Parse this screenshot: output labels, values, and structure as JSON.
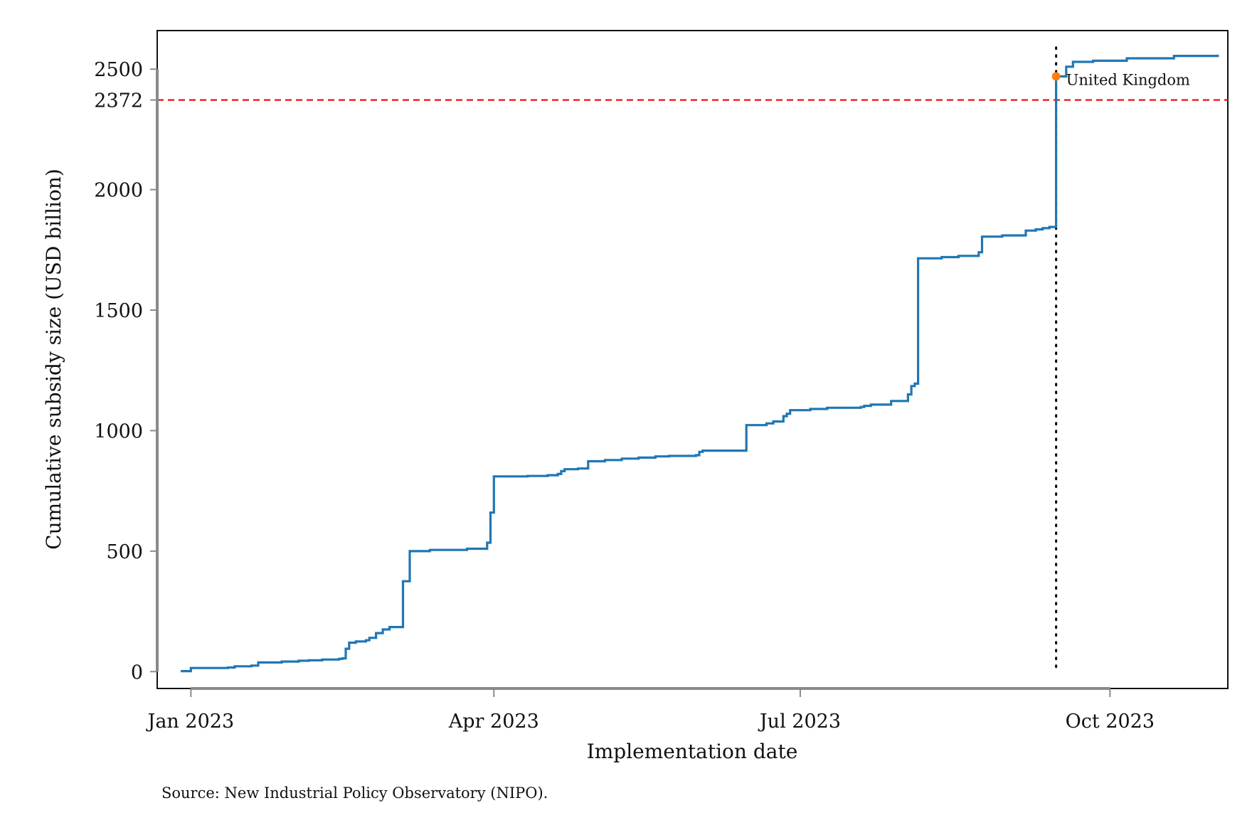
{
  "chart_data": {
    "type": "line",
    "title": "",
    "xlabel": "Implementation date",
    "ylabel": "Cumulative subsidy size (USD billion)",
    "x_ticks": [
      {
        "date": "2023-01-01",
        "label": "Jan 2023"
      },
      {
        "date": "2023-04-01",
        "label": "Apr 2023"
      },
      {
        "date": "2023-07-01",
        "label": "Jul 2023"
      },
      {
        "date": "2023-10-01",
        "label": "Oct 2023"
      }
    ],
    "y_ticks": [
      0,
      500,
      1000,
      1500,
      2000,
      2372,
      2500
    ],
    "xlim": [
      "2022-12-22",
      "2023-11-05"
    ],
    "ylim": [
      -70,
      2660
    ],
    "grid": false,
    "colors": {
      "series": "#1f77b4",
      "reference_line": "#e8262b",
      "marker": "#ff7f0e",
      "vline": "#000000"
    },
    "reference_hline": {
      "y": 2372,
      "label": "2372",
      "style": "dashed"
    },
    "reference_vline": {
      "x": "2023-09-15",
      "style": "dotted"
    },
    "annotation": {
      "x": "2023-09-15",
      "y": 2470,
      "text": "United Kingdom"
    },
    "source_note": "Source: New Industrial Policy Observatory (NIPO).",
    "series": [
      {
        "name": "",
        "step": true,
        "points": [
          [
            "2022-12-29",
            2
          ],
          [
            "2023-01-01",
            15
          ],
          [
            "2023-01-12",
            17
          ],
          [
            "2023-01-14",
            22
          ],
          [
            "2023-01-19",
            25
          ],
          [
            "2023-01-21",
            38
          ],
          [
            "2023-01-28",
            42
          ],
          [
            "2023-02-02",
            45
          ],
          [
            "2023-02-05",
            47
          ],
          [
            "2023-02-09",
            50
          ],
          [
            "2023-02-14",
            53
          ],
          [
            "2023-02-15",
            55
          ],
          [
            "2023-02-16",
            95
          ],
          [
            "2023-02-17",
            120
          ],
          [
            "2023-02-19",
            125
          ],
          [
            "2023-02-22",
            130
          ],
          [
            "2023-02-23",
            140
          ],
          [
            "2023-02-25",
            160
          ],
          [
            "2023-02-27",
            175
          ],
          [
            "2023-03-01",
            185
          ],
          [
            "2023-03-05",
            375
          ],
          [
            "2023-03-07",
            500
          ],
          [
            "2023-03-13",
            505
          ],
          [
            "2023-03-24",
            510
          ],
          [
            "2023-03-30",
            535
          ],
          [
            "2023-03-31",
            660
          ],
          [
            "2023-04-01",
            810
          ],
          [
            "2023-04-11",
            812
          ],
          [
            "2023-04-17",
            815
          ],
          [
            "2023-04-20",
            820
          ],
          [
            "2023-04-21",
            832
          ],
          [
            "2023-04-22",
            840
          ],
          [
            "2023-04-26",
            843
          ],
          [
            "2023-04-29",
            873
          ],
          [
            "2023-05-04",
            878
          ],
          [
            "2023-05-09",
            884
          ],
          [
            "2023-05-14",
            888
          ],
          [
            "2023-05-19",
            893
          ],
          [
            "2023-05-23",
            895
          ],
          [
            "2023-05-31",
            898
          ],
          [
            "2023-06-01",
            912
          ],
          [
            "2023-06-02",
            917
          ],
          [
            "2023-06-15",
            1023
          ],
          [
            "2023-06-21",
            1030
          ],
          [
            "2023-06-23",
            1038
          ],
          [
            "2023-06-26",
            1060
          ],
          [
            "2023-06-27",
            1070
          ],
          [
            "2023-06-28",
            1085
          ],
          [
            "2023-07-04",
            1090
          ],
          [
            "2023-07-09",
            1095
          ],
          [
            "2023-07-19",
            1098
          ],
          [
            "2023-07-20",
            1103
          ],
          [
            "2023-07-22",
            1108
          ],
          [
            "2023-07-28",
            1123
          ],
          [
            "2023-08-02",
            1150
          ],
          [
            "2023-08-03",
            1185
          ],
          [
            "2023-08-04",
            1195
          ],
          [
            "2023-08-05",
            1715
          ],
          [
            "2023-08-12",
            1720
          ],
          [
            "2023-08-17",
            1725
          ],
          [
            "2023-08-23",
            1740
          ],
          [
            "2023-08-24",
            1805
          ],
          [
            "2023-08-30",
            1810
          ],
          [
            "2023-09-06",
            1830
          ],
          [
            "2023-09-09",
            1835
          ],
          [
            "2023-09-11",
            1840
          ],
          [
            "2023-09-13",
            1845
          ],
          [
            "2023-09-15",
            2470
          ],
          [
            "2023-09-18",
            2510
          ],
          [
            "2023-09-20",
            2530
          ],
          [
            "2023-09-26",
            2535
          ],
          [
            "2023-10-06",
            2545
          ],
          [
            "2023-10-20",
            2555
          ],
          [
            "2023-11-02",
            2560
          ]
        ]
      }
    ]
  }
}
